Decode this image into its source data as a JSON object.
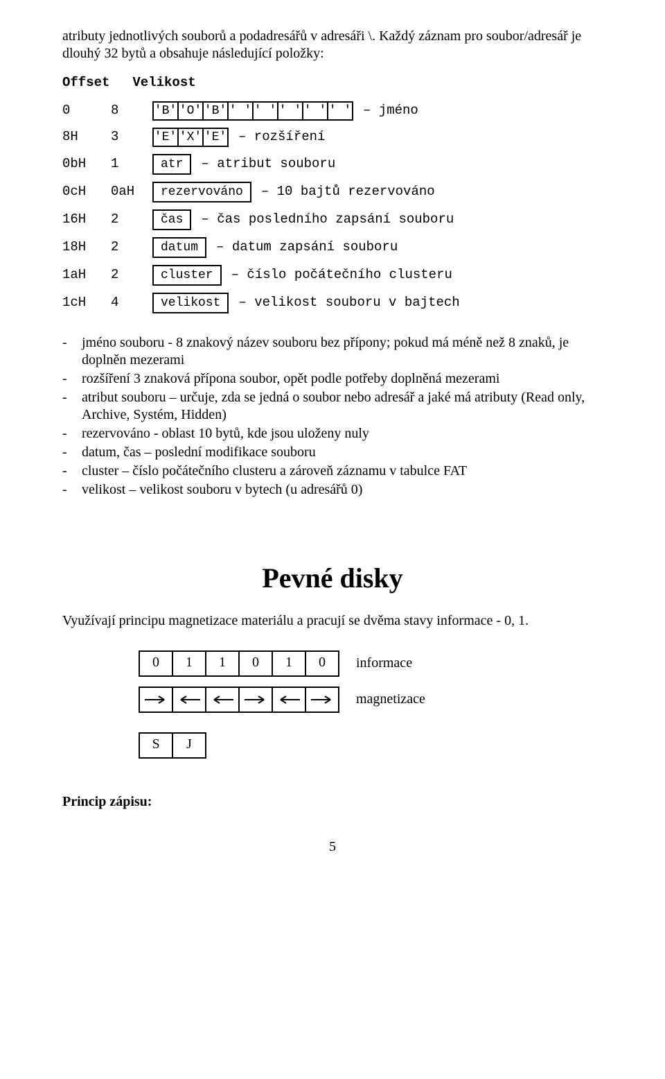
{
  "intro": "atributy jednotlivých souborů a podadresářů v adresáři \\. Každý záznam pro soubor/adresář je dlouhý 32 bytů a obsahuje následující položky:",
  "diagram_header": {
    "offset": "Offset",
    "velikost": "Velikost"
  },
  "rows": [
    {
      "offset": "0",
      "size": "8",
      "cells": [
        "'B'",
        "'O'",
        "'B'",
        "' '",
        "' '",
        "' '",
        "' '",
        "' '"
      ],
      "desc": "– jméno"
    },
    {
      "offset": "8H",
      "size": "3",
      "cells": [
        "'E'",
        "'X'",
        "'E'"
      ],
      "desc": "– rozšíření"
    },
    {
      "offset": "0bH",
      "size": "1",
      "label": "atr",
      "desc": "– atribut souboru"
    },
    {
      "offset": "0cH",
      "size": "0aH",
      "label": "rezervováno",
      "desc": "– 10 bajtů rezervováno"
    },
    {
      "offset": "16H",
      "size": "2",
      "label": "čas",
      "desc": "– čas posledního zapsání souboru"
    },
    {
      "offset": "18H",
      "size": "2",
      "label": "datum",
      "desc": "– datum zapsání souboru"
    },
    {
      "offset": "1aH",
      "size": "2",
      "label": "cluster",
      "desc": "– číslo počátečního clusteru"
    },
    {
      "offset": "1cH",
      "size": "4",
      "label": "velikost",
      "desc": "– velikost souboru v bajtech"
    }
  ],
  "bullets": [
    "jméno souboru - 8 znakový název souboru bez přípony; pokud má méně než 8 znaků, je doplněn mezerami",
    "rozšíření 3 znaková přípona soubor, opět podle potřeby doplněná mezerami",
    "atribut souboru – určuje, zda se jedná o soubor nebo adresář a jaké má atributy (Read only, Archive, Systém, Hidden)",
    "rezervováno - oblast 10 bytů, kde jsou uloženy nuly",
    "datum, čas – poslední modifikace souboru",
    "cluster – číslo počátečního clusteru a zároveň záznamu v tabulce FAT",
    "velikost – velikost souboru v bytech (u adresářů 0)"
  ],
  "section": {
    "title": "Pevné disky",
    "intro": "Využívají principu magnetizace materiálu a pracují se dvěma stavy informace - 0, 1."
  },
  "bits": {
    "values": [
      "0",
      "1",
      "1",
      "0",
      "1",
      "0"
    ],
    "label": "informace"
  },
  "mag": {
    "dirs": [
      "right",
      "left",
      "left",
      "right",
      "left",
      "right"
    ],
    "label": "magnetizace"
  },
  "sj": [
    "S",
    "J"
  ],
  "princip": "Princip zápisu:",
  "page_number": "5",
  "colors": {
    "text": "#000000",
    "bg": "#ffffff",
    "border": "#000000"
  }
}
